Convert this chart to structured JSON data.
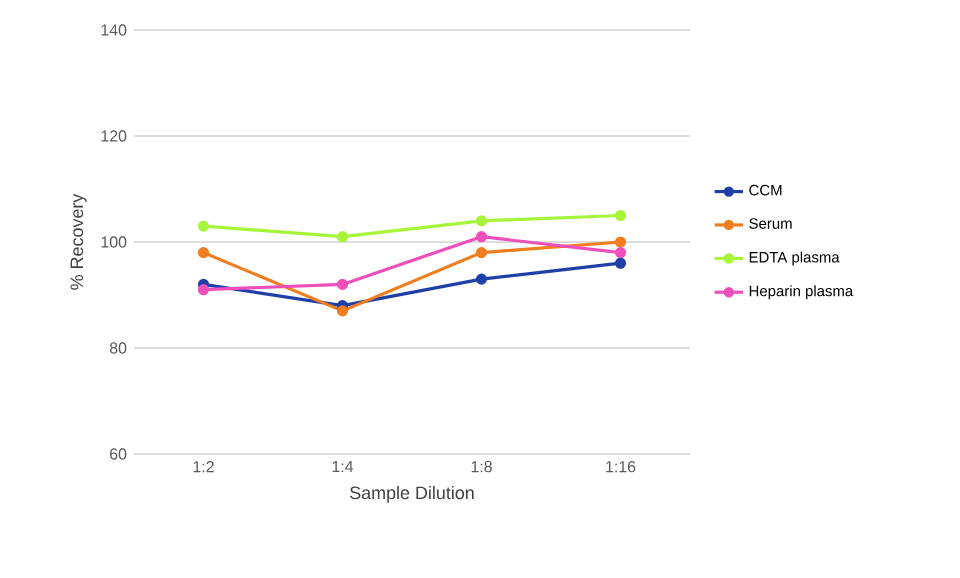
{
  "chart_data": {
    "type": "line",
    "xlabel": "Sample Dilution",
    "ylabel": "% Recovery",
    "categories": [
      "1:2",
      "1:4",
      "1:8",
      "1:16"
    ],
    "series": [
      {
        "name": "CCM",
        "color": "#1f3fa8",
        "values": [
          92,
          88,
          93,
          96
        ]
      },
      {
        "name": "Serum",
        "color": "#f07d1e",
        "values": [
          98,
          87,
          98,
          100
        ]
      },
      {
        "name": "EDTA plasma",
        "color": "#a6f53a",
        "values": [
          103,
          101,
          104,
          105
        ]
      },
      {
        "name": "Heparin plasma",
        "color": "#ee4fbb",
        "values": [
          91,
          92,
          101,
          98
        ]
      }
    ],
    "ylim": [
      60,
      140
    ],
    "yticks": [
      60,
      80,
      100,
      120,
      140
    ],
    "grid": "y",
    "legend": "right",
    "marker": "circle",
    "line_style": "solid"
  }
}
